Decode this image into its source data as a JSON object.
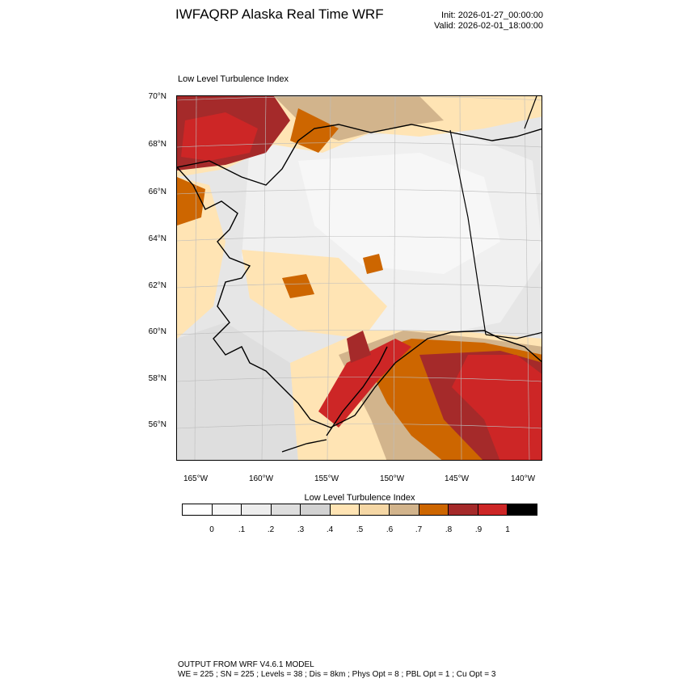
{
  "header": {
    "title": "IWFAQRP Alaska Real Time WRF",
    "init": "Init: 2026-01-27_00:00:00",
    "valid": "Valid: 2026-02-01_18:00:00"
  },
  "plot": {
    "title": "Low Level Turbulence Index",
    "lat_labels": [
      "70°N",
      "68°N",
      "66°N",
      "64°N",
      "62°N",
      "60°N",
      "58°N",
      "56°N"
    ],
    "lon_labels": [
      "165°W",
      "160°W",
      "155°W",
      "150°W",
      "145°W",
      "140°W"
    ]
  },
  "colorbar": {
    "title": "Low Level Turbulence Index",
    "ticks": [
      "0",
      ".1",
      ".2",
      ".3",
      ".4",
      ".5",
      ".6",
      ".7",
      ".8",
      ".9",
      "1"
    ],
    "colors": [
      "#ffffff",
      "#f7f7f7",
      "#ededed",
      "#dedede",
      "#d2d2d2",
      "#ffe4b4",
      "#f5d7a5",
      "#d2b48c",
      "#cd6600",
      "#a52a2a",
      "#cd2626",
      "#000000"
    ]
  },
  "footer": {
    "line1": "OUTPUT FROM WRF V4.6.1 MODEL",
    "line2": "WE = 225 ; SN = 225 ; Levels = 38 ; Dis = 8km ; Phys Opt = 8 ; PBL Opt = 1 ; Cu Opt = 3"
  }
}
